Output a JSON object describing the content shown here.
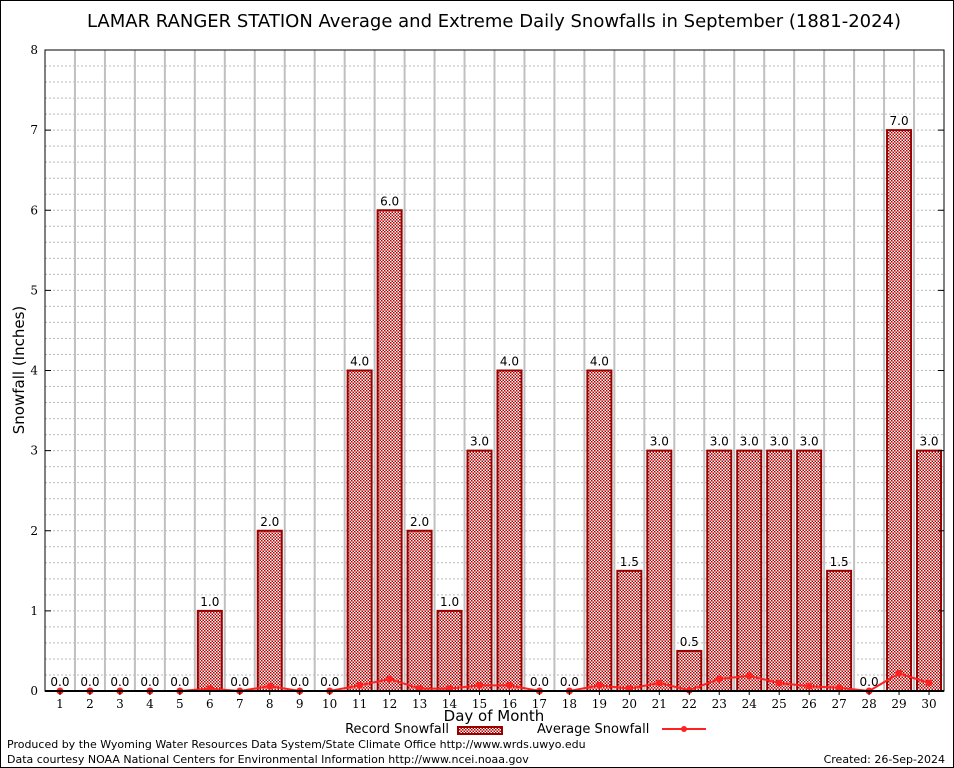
{
  "chart_data": {
    "type": "bar",
    "title": "LAMAR RANGER STATION Average and Extreme Daily Snowfalls in September (1881-2024)",
    "xlabel": "Day of Month",
    "ylabel": "Snowfall (Inches)",
    "ylim": [
      0,
      8
    ],
    "yticks": [
      "0",
      "1",
      "2",
      "3",
      "4",
      "5",
      "6",
      "7",
      "8"
    ],
    "grid": true,
    "legend_position": "bottom",
    "categories": [
      "1",
      "2",
      "3",
      "4",
      "5",
      "6",
      "7",
      "8",
      "9",
      "10",
      "11",
      "12",
      "13",
      "14",
      "15",
      "16",
      "17",
      "18",
      "19",
      "20",
      "21",
      "22",
      "23",
      "24",
      "25",
      "26",
      "27",
      "28",
      "29",
      "30"
    ],
    "series": [
      {
        "name": "Record Snowfall",
        "type": "bar",
        "color": "#990000",
        "values": [
          0.0,
          0.0,
          0.0,
          0.0,
          0.0,
          1.0,
          0.0,
          2.0,
          0.0,
          0.0,
          4.0,
          6.0,
          2.0,
          1.0,
          3.0,
          4.0,
          0.0,
          0.0,
          4.0,
          1.5,
          3.0,
          0.5,
          3.0,
          3.0,
          3.0,
          3.0,
          1.5,
          0.0,
          7.0,
          3.0
        ],
        "labels": [
          "0.0",
          "0.0",
          "0.0",
          "0.0",
          "0.0",
          "1.0",
          "0.0",
          "2.0",
          "0.0",
          "0.0",
          "4.0",
          "6.0",
          "2.0",
          "1.0",
          "3.0",
          "4.0",
          "0.0",
          "0.0",
          "4.0",
          "1.5",
          "3.0",
          "0.5",
          "3.0",
          "3.0",
          "3.0",
          "3.0",
          "1.5",
          "0.0",
          "7.0",
          "3.0"
        ]
      },
      {
        "name": "Average Snowfall",
        "type": "line",
        "color": "#ff2020",
        "values": [
          0,
          0,
          0,
          0,
          0,
          0.03,
          0,
          0.06,
          0,
          0,
          0.07,
          0.15,
          0.03,
          0.03,
          0.07,
          0.07,
          0,
          0,
          0.07,
          0.03,
          0.1,
          0.01,
          0.15,
          0.19,
          0.1,
          0.06,
          0.04,
          0,
          0.22,
          0.1
        ]
      }
    ]
  },
  "footer": {
    "produced_by": "Produced by the Wyoming Water Resources Data System/State Climate Office http://www.wrds.uwyo.edu",
    "courtesy": "Data courtesy NOAA National Centers for Environmental Information http://www.ncei.noaa.gov",
    "created": "Created: 26-Sep-2024"
  }
}
